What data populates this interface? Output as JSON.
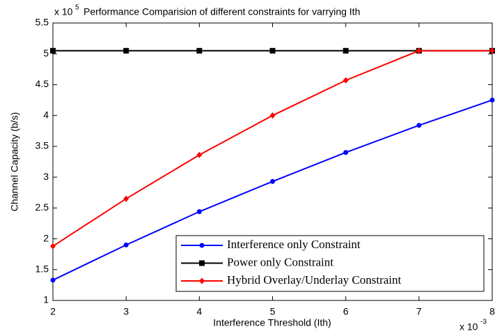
{
  "chart_data": {
    "type": "line",
    "title": "Performance Comparision of different constraints for varrying Ith",
    "xlabel": "Interference Threshold (Ith)",
    "ylabel": "Channel Capacity (b/s)",
    "y_multiplier": {
      "base": "x 10",
      "exponent": "5"
    },
    "x_multiplier": {
      "base": "x 10",
      "exponent": "-3"
    },
    "x": [
      2,
      3,
      4,
      5,
      6,
      7,
      8
    ],
    "series": [
      {
        "name": "Interference only Constraint",
        "color": "#0000ff",
        "marker": "circle",
        "values": [
          1.33,
          1.9,
          2.44,
          2.93,
          3.4,
          3.84,
          4.25
        ]
      },
      {
        "name": "Power only Constraint",
        "color": "#000000",
        "marker": "square",
        "values": [
          5.05,
          5.05,
          5.05,
          5.05,
          5.05,
          5.05,
          5.05
        ]
      },
      {
        "name": "Hybrid Overlay/Underlay Constraint",
        "color": "#ff0000",
        "marker": "diamond",
        "values": [
          1.88,
          2.65,
          3.36,
          4.0,
          4.57,
          5.05,
          5.05
        ]
      }
    ],
    "xlim": [
      2,
      8
    ],
    "xticks": [
      2,
      3,
      4,
      5,
      6,
      7,
      8
    ],
    "ylim": [
      1,
      5.5
    ],
    "yticks": [
      1,
      1.5,
      2,
      2.5,
      3,
      3.5,
      4,
      4.5,
      5,
      5.5
    ],
    "grid": false,
    "legend": "lower right"
  }
}
